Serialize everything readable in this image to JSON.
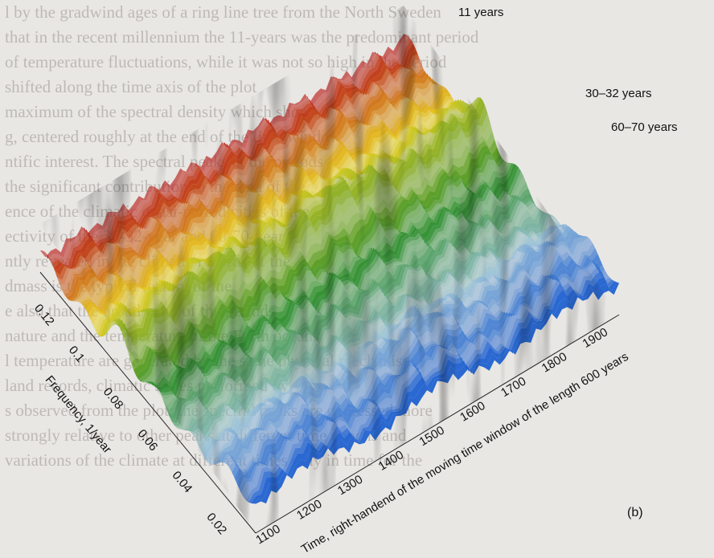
{
  "chart_data": {
    "type": "surface-3d",
    "panel_label": "(b)",
    "xlabel": "Time, right-handend of the moving time window of the length 600 years",
    "ylabel": "Frequency, 1/year",
    "x_ticks": [
      "1100",
      "1200",
      "1300",
      "1400",
      "1500",
      "1600",
      "1700",
      "1800",
      "1900"
    ],
    "y_ticks": [
      "0.02",
      "0.04",
      "0.06",
      "0.08",
      "0.1",
      "0.12"
    ],
    "xlim": [
      1100,
      1990
    ],
    "ylim": [
      0.01,
      0.135
    ],
    "annotations": [
      {
        "text": "11 years",
        "x": 1925,
        "y": 0.091
      },
      {
        "text": "30–32 years",
        "x": 1960,
        "y": 0.032
      },
      {
        "text": "60–70 years",
        "x": 1990,
        "y": 0.015
      }
    ],
    "ridges": [
      {
        "period_years": "11",
        "frequency": 0.091
      },
      {
        "period_years": "30–32",
        "frequency": 0.032
      },
      {
        "period_years": "60–70",
        "frequency": 0.015
      }
    ],
    "colormap": [
      "#1e5fd0",
      "#9ec4d8",
      "#2f8f2a",
      "#e8d020",
      "#b81818"
    ]
  },
  "background_text": [
    "l by the gradwind ages of a ring line tree from the North Sweden",
    "that in the recent millennium the 11-years was the predominant period",
    "of temperature fluctuations, while it was not so high in the period",
    "shifted along the time axis of the plot",
    "maximum of the spectral density which shows a",
    "g, centered roughly at the end of the time window",
    "ntific interest. The spectral peaks at the periods",
    "the significant contribution to the data of the",
    "ence of the climatic quasi-periodicities of the",
    "ectivity of the 30-32-year and 60-70-year",
    "ntly revealed in the climatic records of the",
    "dmass is the typical feature of the",
    "e also that the broad band of the periods",
    "nature and the temperature of the Earth oceans",
    "l temperature are generated by the same physical mechanism",
    "land records, climatic series performed by",
    "s observed from the plot: the spectral peaks are expressed more",
    "strongly relative to other peaks at different time epochs and",
    "variations of the climate at different times only in time for the"
  ]
}
